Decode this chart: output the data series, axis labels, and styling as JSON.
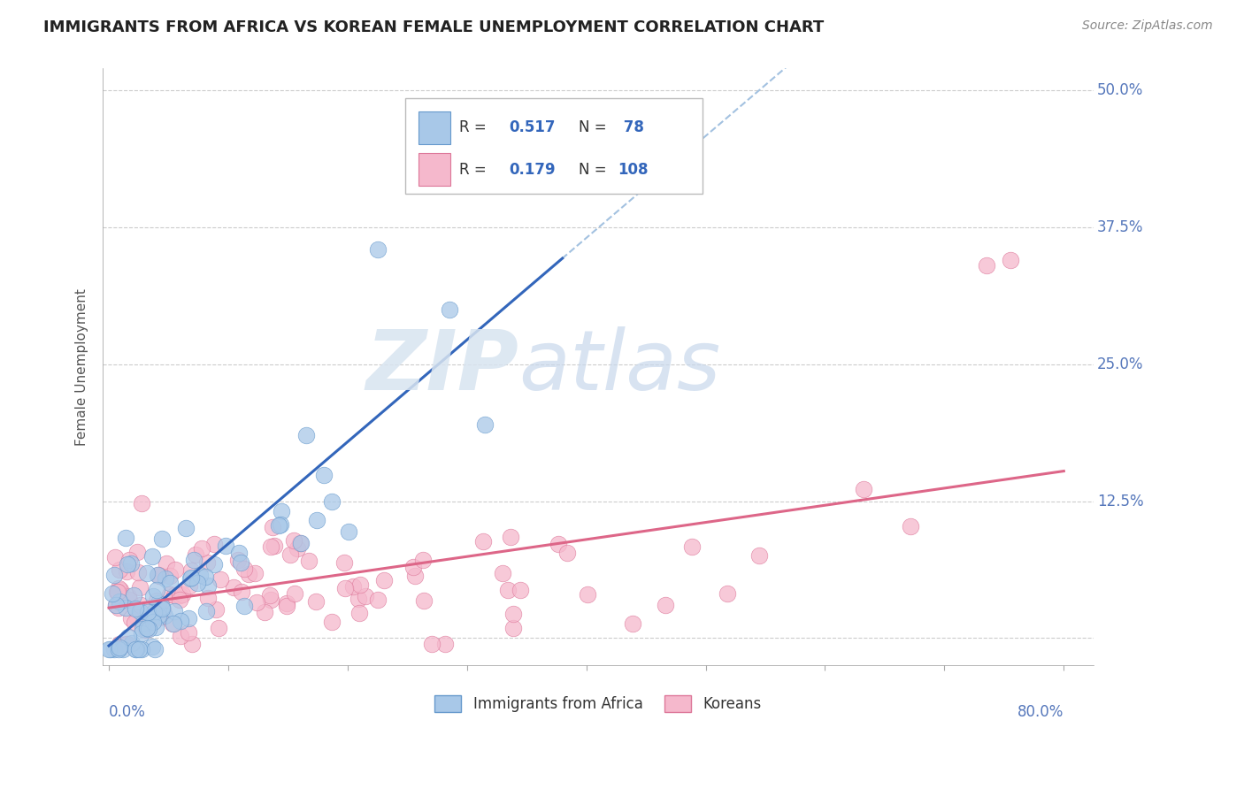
{
  "title": "IMMIGRANTS FROM AFRICA VS KOREAN FEMALE UNEMPLOYMENT CORRELATION CHART",
  "source_text": "Source: ZipAtlas.com",
  "ylabel": "Female Unemployment",
  "xmin": 0.0,
  "xmax": 0.8,
  "ymin": -0.025,
  "ymax": 0.52,
  "watermark_zip": "ZIP",
  "watermark_atlas": "atlas",
  "africa_color": "#a8c8e8",
  "africa_edge": "#6699cc",
  "africa_line_color": "#3366bb",
  "korea_color": "#f5b8cc",
  "korea_edge": "#dd7799",
  "korea_line_color": "#dd6688",
  "dash_color": "#99bbdd",
  "africa_R": 0.517,
  "africa_N": 78,
  "korea_R": 0.179,
  "korea_N": 108,
  "title_fontsize": 13,
  "tick_label_color": "#5577bb",
  "legend_text_color": "#333333",
  "legend_value_color": "#3366bb",
  "grid_color": "#cccccc"
}
